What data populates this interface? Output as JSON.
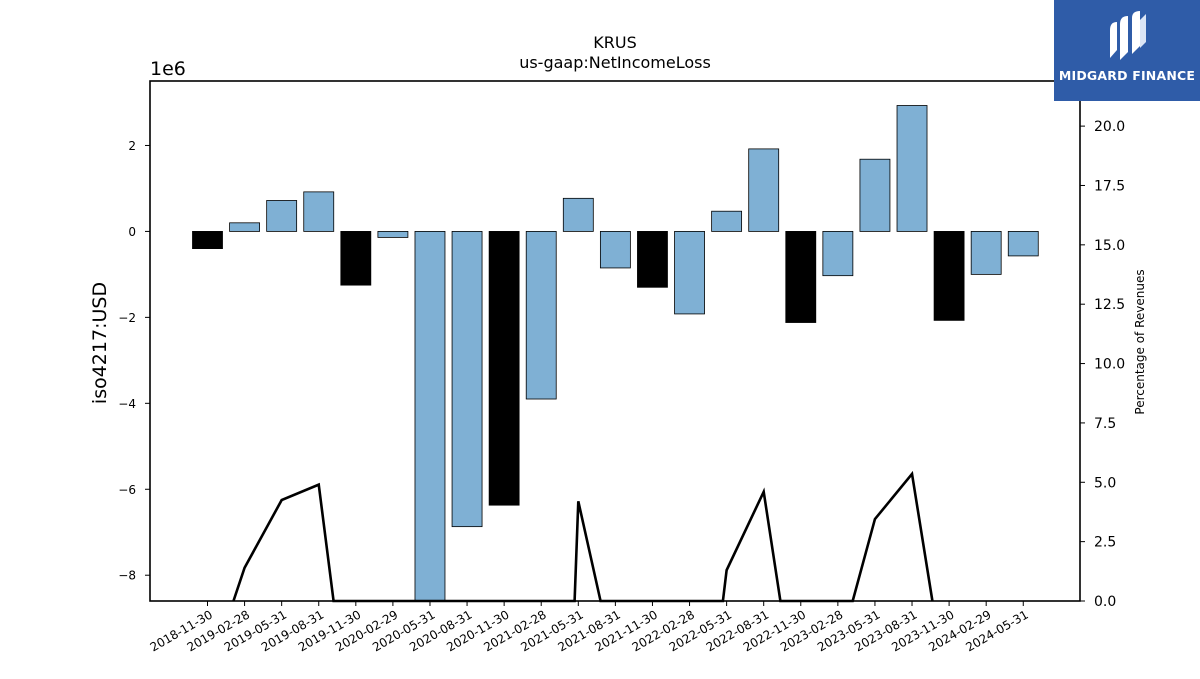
{
  "chart_data": {
    "type": "bar",
    "title": "KRUS",
    "subtitle": "us-gaap:NetIncomeLoss",
    "ylabel": "iso4217:USD",
    "y_multiplier_label": "1e6",
    "y2label": "Percentage of Revenues",
    "categories": [
      "2018-11-30",
      "2019-02-28",
      "2019-05-31",
      "2019-08-31",
      "2019-11-30",
      "2020-02-29",
      "2020-05-31",
      "2020-08-31",
      "2020-11-30",
      "2021-02-28",
      "2021-05-31",
      "2021-08-31",
      "2021-11-30",
      "2022-02-28",
      "2022-05-31",
      "2022-08-31",
      "2022-11-30",
      "2023-02-28",
      "2023-05-31",
      "2023-08-31",
      "2023-11-30",
      "2024-02-29",
      "2024-05-31"
    ],
    "values": [
      -0.4,
      0.2,
      0.72,
      0.92,
      -1.25,
      -0.14,
      -8.6,
      -6.87,
      -6.37,
      -3.9,
      0.77,
      -0.85,
      -1.3,
      -1.92,
      0.47,
      1.92,
      -2.12,
      -1.03,
      1.68,
      2.93,
      -2.07,
      -1.0,
      -0.57
    ],
    "value_unit": "millions USD",
    "bar_colors": [
      "#000000",
      "#7fb0d4",
      "#7fb0d4",
      "#7fb0d4",
      "#000000",
      "#7fb0d4",
      "#7fb0d4",
      "#7fb0d4",
      "#000000",
      "#7fb0d4",
      "#7fb0d4",
      "#7fb0d4",
      "#000000",
      "#7fb0d4",
      "#7fb0d4",
      "#7fb0d4",
      "#000000",
      "#7fb0d4",
      "#7fb0d4",
      "#7fb0d4",
      "#000000",
      "#7fb0d4",
      "#7fb0d4"
    ],
    "ylim": [
      -8.6,
      3.5
    ],
    "yticks": [
      -8,
      -6,
      -4,
      -2,
      0,
      2
    ],
    "ytick_labels": [
      "−8",
      "−6",
      "−4",
      "−2",
      "0",
      "2"
    ],
    "y2lim": [
      0,
      21.9
    ],
    "y2ticks": [
      0,
      2.5,
      5,
      7.5,
      10,
      12.5,
      15,
      17.5,
      20
    ],
    "y2tick_labels": [
      "0.0",
      "2.5",
      "5.0",
      "7.5",
      "10.0",
      "12.5",
      "15.0",
      "17.5",
      "20.0"
    ],
    "line_series": {
      "points": [
        {
          "x": 0.7,
          "y": 0
        },
        {
          "x": 1.0,
          "y": 1.4
        },
        {
          "x": 2.0,
          "y": 4.25
        },
        {
          "x": 3.0,
          "y": 4.9
        },
        {
          "x": 3.4,
          "y": 0
        },
        {
          "x": 9.9,
          "y": 0
        },
        {
          "x": 10.0,
          "y": 4.2
        },
        {
          "x": 10.6,
          "y": 0
        },
        {
          "x": 13.9,
          "y": 0
        },
        {
          "x": 14.0,
          "y": 1.3
        },
        {
          "x": 15.0,
          "y": 4.6
        },
        {
          "x": 15.45,
          "y": 0
        },
        {
          "x": 17.4,
          "y": 0
        },
        {
          "x": 18.0,
          "y": 3.45
        },
        {
          "x": 19.0,
          "y": 5.35
        },
        {
          "x": 19.55,
          "y": 0
        }
      ],
      "color": "#000000"
    },
    "grid": false
  },
  "logo": {
    "text": "MIDGARD FINANCE",
    "bg_color": "#2f5ca8"
  }
}
